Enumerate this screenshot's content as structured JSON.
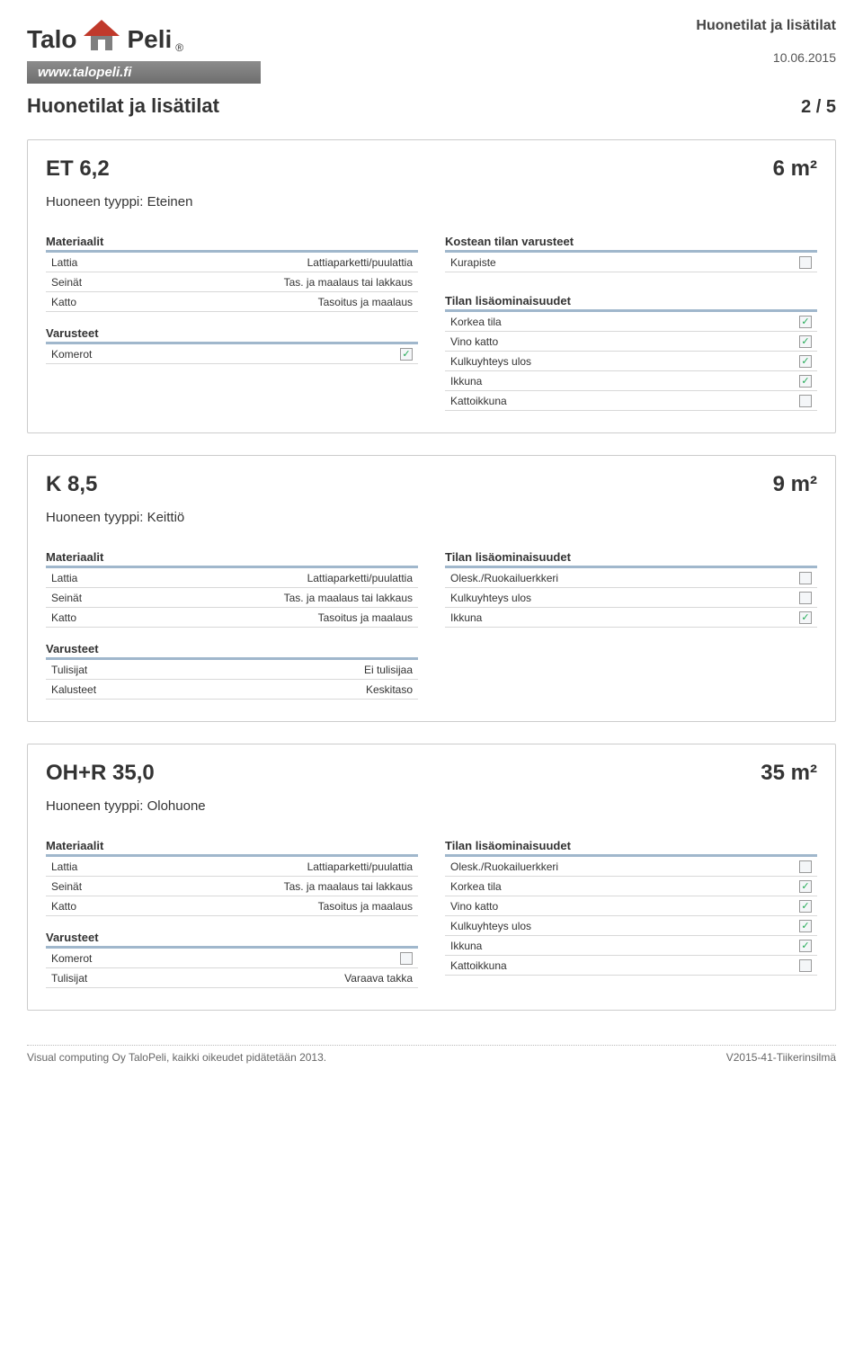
{
  "header": {
    "doc_title": "Huonetilat ja lisätilat",
    "date": "10.06.2015",
    "brand_left": "Talo",
    "brand_right": "Peli",
    "registered": "®",
    "url": "www.talopeli.fi",
    "section_title": "Huonetilat ja lisätilat",
    "page_current": "2",
    "page_sep": " / ",
    "page_total": "5"
  },
  "labels": {
    "room_type_prefix": "Huoneen tyyppi: ",
    "materials": "Materiaalit",
    "equipment": "Varusteet",
    "wet_equipment": "Kostean tilan varusteet",
    "additional": "Tilan lisäominaisuudet"
  },
  "logo_colors": {
    "roof": "#c0392b",
    "wall": "#7f7f7f"
  },
  "rooms": [
    {
      "name": "ET 6,2",
      "area": "6 m²",
      "type": "Eteinen",
      "materials": [
        {
          "k": "Lattia",
          "v": "Lattiaparketti/puulattia"
        },
        {
          "k": "Seinät",
          "v": "Tas. ja maalaus tai lakkaus"
        },
        {
          "k": "Katto",
          "v": "Tasoitus ja maalaus"
        }
      ],
      "equipment_checks": [
        {
          "label": "Komerot",
          "checked": true
        }
      ],
      "equipment_kv": [],
      "wet": [
        {
          "label": "Kurapiste",
          "checked": false
        }
      ],
      "additional": [
        {
          "label": "Korkea tila",
          "checked": true
        },
        {
          "label": "Vino katto",
          "checked": true
        },
        {
          "label": "Kulkuyhteys ulos",
          "checked": true
        },
        {
          "label": "Ikkuna",
          "checked": true
        },
        {
          "label": "Kattoikkuna",
          "checked": false
        }
      ]
    },
    {
      "name": "K 8,5",
      "area": "9 m²",
      "type": "Keittiö",
      "materials": [
        {
          "k": "Lattia",
          "v": "Lattiaparketti/puulattia"
        },
        {
          "k": "Seinät",
          "v": "Tas. ja maalaus tai lakkaus"
        },
        {
          "k": "Katto",
          "v": "Tasoitus ja maalaus"
        }
      ],
      "equipment_checks": [],
      "equipment_kv": [
        {
          "k": "Tulisijat",
          "v": "Ei tulisijaa"
        },
        {
          "k": "Kalusteet",
          "v": "Keskitaso"
        }
      ],
      "wet": null,
      "additional": [
        {
          "label": "Olesk./Ruokailuerkkeri",
          "checked": false
        },
        {
          "label": "Kulkuyhteys ulos",
          "checked": false
        },
        {
          "label": "Ikkuna",
          "checked": true
        }
      ]
    },
    {
      "name": "OH+R 35,0",
      "area": "35 m²",
      "type": "Olohuone",
      "materials": [
        {
          "k": "Lattia",
          "v": "Lattiaparketti/puulattia"
        },
        {
          "k": "Seinät",
          "v": "Tas. ja maalaus tai lakkaus"
        },
        {
          "k": "Katto",
          "v": "Tasoitus ja maalaus"
        }
      ],
      "equipment_checks": [
        {
          "label": "Komerot",
          "checked": false
        }
      ],
      "equipment_kv": [
        {
          "k": "Tulisijat",
          "v": "Varaava takka"
        }
      ],
      "wet": null,
      "additional": [
        {
          "label": "Olesk./Ruokailuerkkeri",
          "checked": false
        },
        {
          "label": "Korkea tila",
          "checked": true
        },
        {
          "label": "Vino katto",
          "checked": true
        },
        {
          "label": "Kulkuyhteys ulos",
          "checked": true
        },
        {
          "label": "Ikkuna",
          "checked": true
        },
        {
          "label": "Kattoikkuna",
          "checked": false
        }
      ]
    }
  ],
  "footer": {
    "left": "Visual computing Oy TaloPeli, kaikki oikeudet pidätetään 2013.",
    "right": "V2015-41-Tiikerinsilmä"
  }
}
